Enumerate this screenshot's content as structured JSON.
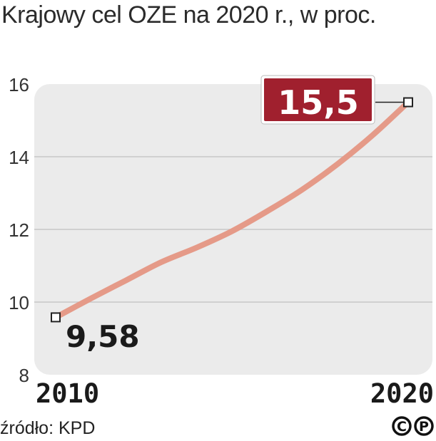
{
  "title": "Krajowy cel OZE na 2020 r., w proc.",
  "source": "źródło: KPD",
  "copyright_marks": [
    "C",
    "P"
  ],
  "colors": {
    "background_panel": "#ebebeb",
    "line": "#e59a88",
    "highlight_box": "#a0202e",
    "text": "#1a1a1a",
    "gridline": "#c8c8c8"
  },
  "chart_data": {
    "type": "line",
    "title": "Krajowy cel OZE na 2020 r., w proc.",
    "xlabel": "",
    "ylabel": "",
    "x_tick_labels": [
      "2010",
      "2020"
    ],
    "y_ticks": [
      8,
      10,
      12,
      14,
      16
    ],
    "y_tick_labels": [
      "8",
      "10",
      "12",
      "14",
      "16"
    ],
    "xlim": [
      2010,
      2020
    ],
    "ylim": [
      8,
      16
    ],
    "grid": true,
    "series": [
      {
        "name": "Krajowy cel OZE",
        "x": [
          2010,
          2011,
          2012,
          2013,
          2014,
          2015,
          2016,
          2017,
          2018,
          2019,
          2020
        ],
        "values": [
          9.58,
          10.1,
          10.6,
          11.1,
          11.5,
          11.95,
          12.5,
          13.1,
          13.8,
          14.6,
          15.5
        ]
      }
    ],
    "annotations": [
      {
        "x": 2010,
        "y": 9.58,
        "label": "9,58",
        "style": "plain"
      },
      {
        "x": 2020,
        "y": 15.5,
        "label": "15,5",
        "style": "boxed"
      }
    ]
  }
}
